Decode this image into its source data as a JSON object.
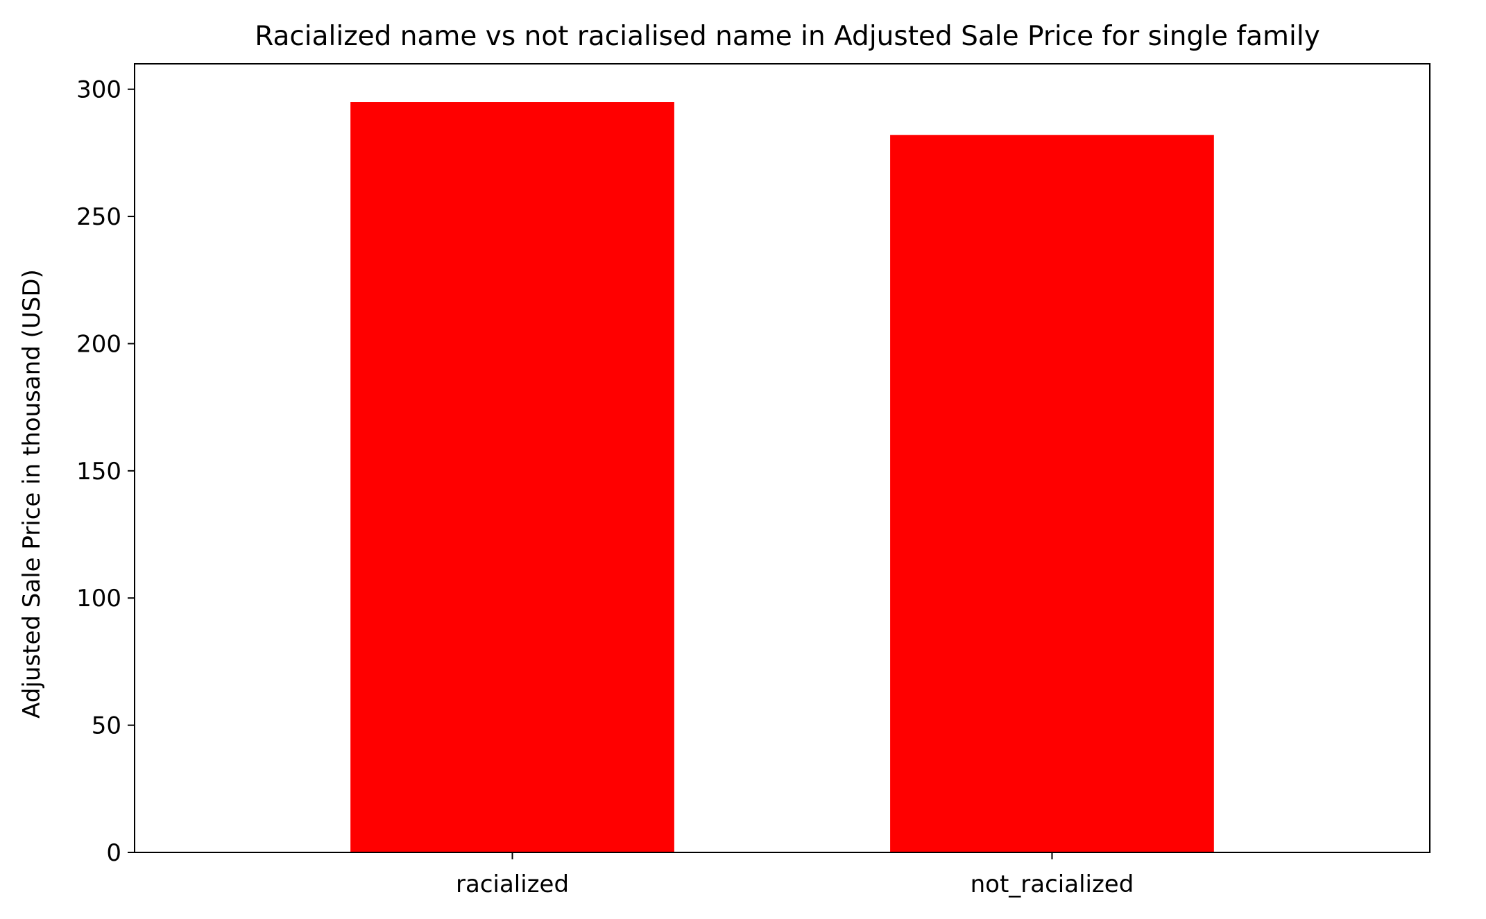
{
  "chart_data": {
    "type": "bar",
    "title": "Racialized name vs not racialised name in Adjusted Sale Price for single family",
    "xlabel": "",
    "ylabel": "Adjusted Sale Price in thousand (USD)",
    "categories": [
      "racialized",
      "not_racialized"
    ],
    "values": [
      295,
      282
    ],
    "ylim": [
      0,
      310
    ],
    "yticks": [
      0,
      50,
      100,
      150,
      200,
      250,
      300
    ],
    "grid": false,
    "bar_color": "#ff0000"
  }
}
